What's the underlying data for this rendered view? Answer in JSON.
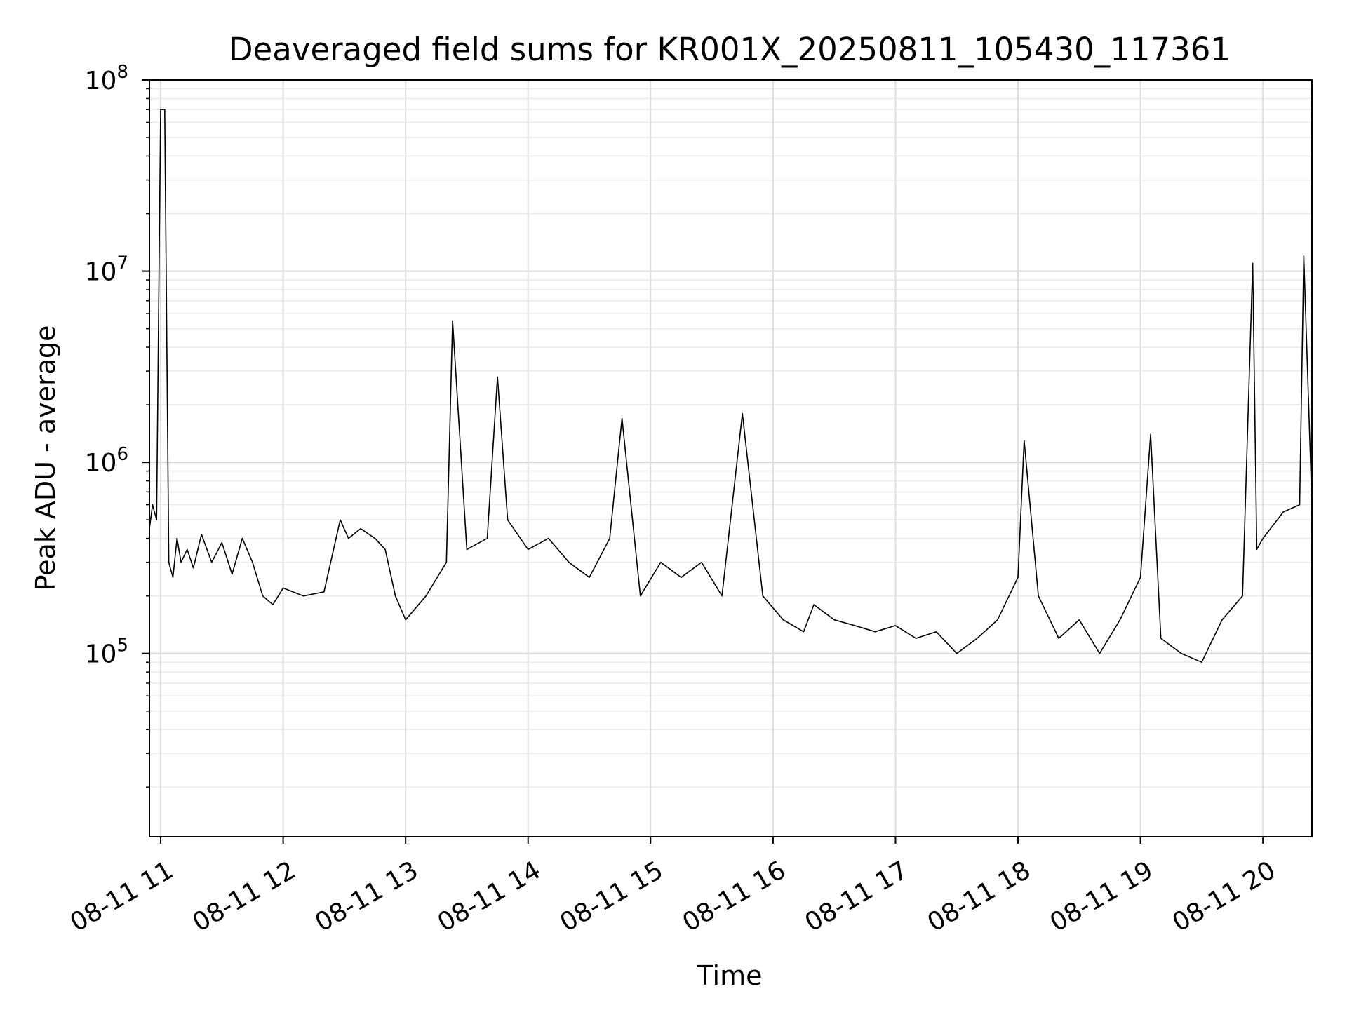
{
  "chart_data": {
    "type": "line",
    "title": "Deaveraged field sums for KR001X_20250811_105430_117361",
    "xlabel": "Time",
    "ylabel": "Peak ADU - average",
    "x_range": [
      "2025-08-11 10:54:30",
      "2025-08-11 20:24:00"
    ],
    "y_scale": "log",
    "ylim": [
      11000,
      100000000
    ],
    "grid": true,
    "line_color": "#000000",
    "x_ticks": [
      {
        "time": "2025-08-11 11:00",
        "label": "08-11 11"
      },
      {
        "time": "2025-08-11 12:00",
        "label": "08-11 12"
      },
      {
        "time": "2025-08-11 13:00",
        "label": "08-11 13"
      },
      {
        "time": "2025-08-11 14:00",
        "label": "08-11 14"
      },
      {
        "time": "2025-08-11 15:00",
        "label": "08-11 15"
      },
      {
        "time": "2025-08-11 16:00",
        "label": "08-11 16"
      },
      {
        "time": "2025-08-11 17:00",
        "label": "08-11 17"
      },
      {
        "time": "2025-08-11 18:00",
        "label": "08-11 18"
      },
      {
        "time": "2025-08-11 19:00",
        "label": "08-11 19"
      },
      {
        "time": "2025-08-11 20:00",
        "label": "08-11 20"
      }
    ],
    "y_ticks": [
      {
        "value": 100000,
        "base": "10",
        "exp": "5"
      },
      {
        "value": 1000000,
        "base": "10",
        "exp": "6"
      },
      {
        "value": 10000000,
        "base": "10",
        "exp": "7"
      },
      {
        "value": 100000000,
        "base": "10",
        "exp": "8"
      }
    ],
    "series": [
      {
        "x": [
          "2025-08-11 10:54:30",
          "2025-08-11 10:56",
          "2025-08-11 10:58",
          "2025-08-11 11:00",
          "2025-08-11 11:02",
          "2025-08-11 11:04",
          "2025-08-11 11:06",
          "2025-08-11 11:08",
          "2025-08-11 11:10",
          "2025-08-11 11:13",
          "2025-08-11 11:16",
          "2025-08-11 11:20",
          "2025-08-11 11:25",
          "2025-08-11 11:30",
          "2025-08-11 11:35",
          "2025-08-11 11:40",
          "2025-08-11 11:45",
          "2025-08-11 11:50",
          "2025-08-11 11:55",
          "2025-08-11 12:00",
          "2025-08-11 12:10",
          "2025-08-11 12:20",
          "2025-08-11 12:28",
          "2025-08-11 12:32",
          "2025-08-11 12:38",
          "2025-08-11 12:45",
          "2025-08-11 12:50",
          "2025-08-11 12:55",
          "2025-08-11 13:00",
          "2025-08-11 13:10",
          "2025-08-11 13:20",
          "2025-08-11 13:23",
          "2025-08-11 13:30",
          "2025-08-11 13:40",
          "2025-08-11 13:45",
          "2025-08-11 13:50",
          "2025-08-11 14:00",
          "2025-08-11 14:10",
          "2025-08-11 14:20",
          "2025-08-11 14:30",
          "2025-08-11 14:40",
          "2025-08-11 14:46",
          "2025-08-11 14:55",
          "2025-08-11 15:05",
          "2025-08-11 15:15",
          "2025-08-11 15:25",
          "2025-08-11 15:35",
          "2025-08-11 15:45",
          "2025-08-11 15:55",
          "2025-08-11 16:05",
          "2025-08-11 16:15",
          "2025-08-11 16:20",
          "2025-08-11 16:30",
          "2025-08-11 16:40",
          "2025-08-11 16:50",
          "2025-08-11 17:00",
          "2025-08-11 17:10",
          "2025-08-11 17:20",
          "2025-08-11 17:30",
          "2025-08-11 17:40",
          "2025-08-11 17:50",
          "2025-08-11 18:00",
          "2025-08-11 18:03",
          "2025-08-11 18:10",
          "2025-08-11 18:20",
          "2025-08-11 18:30",
          "2025-08-11 18:40",
          "2025-08-11 18:50",
          "2025-08-11 19:00",
          "2025-08-11 19:05",
          "2025-08-11 19:10",
          "2025-08-11 19:20",
          "2025-08-11 19:30",
          "2025-08-11 19:40",
          "2025-08-11 19:50",
          "2025-08-11 19:55",
          "2025-08-11 19:57",
          "2025-08-11 20:00",
          "2025-08-11 20:10",
          "2025-08-11 20:18",
          "2025-08-11 20:20",
          "2025-08-11 20:24"
        ],
        "y": [
          450000,
          600000,
          500000,
          70000000,
          70000000,
          300000,
          250000,
          400000,
          300000,
          350000,
          280000,
          420000,
          300000,
          380000,
          260000,
          400000,
          300000,
          200000,
          180000,
          220000,
          200000,
          210000,
          500000,
          400000,
          450000,
          400000,
          350000,
          200000,
          150000,
          200000,
          300000,
          5500000,
          350000,
          400000,
          2800000,
          500000,
          350000,
          400000,
          300000,
          250000,
          400000,
          1700000,
          200000,
          300000,
          250000,
          300000,
          200000,
          1800000,
          200000,
          150000,
          130000,
          180000,
          150000,
          140000,
          130000,
          140000,
          120000,
          130000,
          100000,
          120000,
          150000,
          250000,
          1300000,
          200000,
          120000,
          150000,
          100000,
          150000,
          250000,
          1400000,
          120000,
          100000,
          90000,
          150000,
          200000,
          11000000,
          350000,
          400000,
          550000,
          600000,
          12000000,
          600000
        ]
      }
    ]
  }
}
